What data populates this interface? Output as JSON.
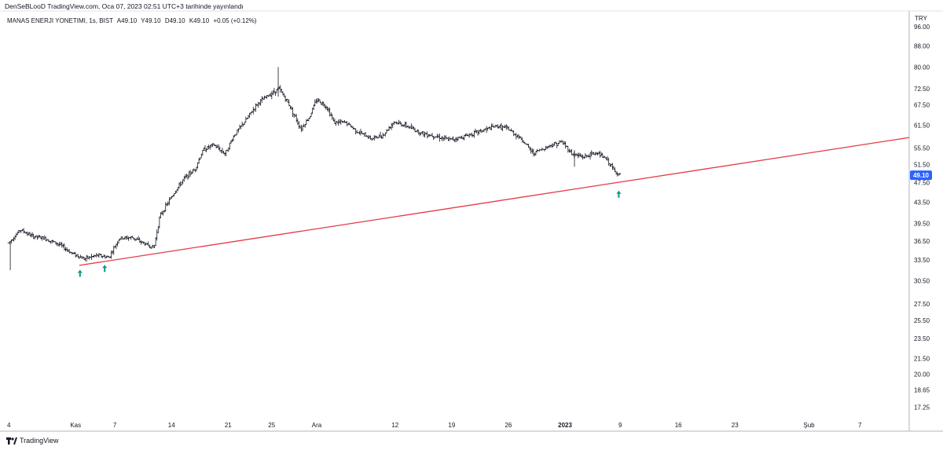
{
  "header": {
    "published_line": "DenSeBLooD TradingView.com, Oca 07, 2023 02:51 UTC+3 tarihinde yayınlandı"
  },
  "legend": {
    "symbol": "MANAS ENERJI YONETIMI, 1s, BIST",
    "open": "A49.10",
    "high": "Y49.10",
    "low": "D49.10",
    "close": "K49.10",
    "change": "+0.05 (+0.12%)"
  },
  "footer": {
    "brand": "TradingView"
  },
  "colors": {
    "bars": "#131722",
    "trendline": "#e53945",
    "arrows": "#089981",
    "price_tag": "#2962ff",
    "grid": "#e6e9ef"
  },
  "chart_data": {
    "type": "ohlc-bar",
    "currency": "TRY",
    "scale": "log",
    "ylim": [
      16.5,
      103
    ],
    "xlim": [
      -0.5,
      62
    ],
    "y_ticks": [
      "96.00",
      "88.00",
      "80.00",
      "72.50",
      "67.50",
      "61.50",
      "55.50",
      "51.50",
      "47.50",
      "43.50",
      "39.50",
      "36.50",
      "33.50",
      "30.50",
      "27.50",
      "25.50",
      "23.50",
      "21.50",
      "20.00",
      "18.65",
      "17.25"
    ],
    "last_price": "49.10",
    "x_ticks": [
      {
        "label": "4",
        "pos": 0
      },
      {
        "label": "Kas",
        "pos": 4.6
      },
      {
        "label": "7",
        "pos": 7.3
      },
      {
        "label": "14",
        "pos": 11.2
      },
      {
        "label": "21",
        "pos": 15.1
      },
      {
        "label": "25",
        "pos": 18.1
      },
      {
        "label": "Ara",
        "pos": 21.2
      },
      {
        "label": "12",
        "pos": 26.6
      },
      {
        "label": "19",
        "pos": 30.5
      },
      {
        "label": "26",
        "pos": 34.4
      },
      {
        "label": "2023",
        "pos": 38.3,
        "bold": true
      },
      {
        "label": "9",
        "pos": 42.1
      },
      {
        "label": "16",
        "pos": 46.1
      },
      {
        "label": "23",
        "pos": 50
      },
      {
        "label": "Şub",
        "pos": 55.1
      },
      {
        "label": "7",
        "pos": 58.6
      }
    ],
    "price_path": [
      [
        0,
        36.2
      ],
      [
        0.8,
        38.4
      ],
      [
        1.6,
        37.3
      ],
      [
        2.5,
        36.9
      ],
      [
        3.5,
        35.9
      ],
      [
        4.3,
        34.6
      ],
      [
        5.2,
        33.7
      ],
      [
        6.1,
        34.2
      ],
      [
        6.9,
        33.9
      ],
      [
        7.6,
        36.9
      ],
      [
        8.5,
        37.1
      ],
      [
        9.3,
        36.1
      ],
      [
        10.0,
        35.4
      ],
      [
        10.4,
        40.8
      ],
      [
        11.2,
        44.5
      ],
      [
        12.1,
        48.5
      ],
      [
        12.8,
        50.4
      ],
      [
        13.4,
        55.1
      ],
      [
        14.1,
        56.3
      ],
      [
        14.9,
        54.1
      ],
      [
        15.5,
        58.7
      ],
      [
        16.3,
        62.8
      ],
      [
        17.1,
        67.7
      ],
      [
        17.9,
        70.5
      ],
      [
        18.6,
        72.6
      ],
      [
        19.3,
        67.5
      ],
      [
        20.1,
        60.5
      ],
      [
        20.7,
        63.8
      ],
      [
        21.2,
        69.2
      ],
      [
        21.9,
        66.8
      ],
      [
        22.4,
        62.3
      ],
      [
        23.2,
        62.3
      ],
      [
        24.0,
        59.8
      ],
      [
        25.0,
        57.9
      ],
      [
        25.8,
        58.9
      ],
      [
        26.5,
        62.5
      ],
      [
        27.4,
        61.3
      ],
      [
        28.4,
        59.4
      ],
      [
        29.3,
        58.7
      ],
      [
        30.3,
        57.6
      ],
      [
        31.1,
        58.2
      ],
      [
        32.3,
        59.7
      ],
      [
        33.6,
        61.3
      ],
      [
        34.3,
        60.7
      ],
      [
        35.3,
        57.8
      ],
      [
        36.1,
        54.2
      ],
      [
        37.3,
        56.2
      ],
      [
        38.1,
        57.1
      ],
      [
        38.8,
        54.0
      ],
      [
        39.6,
        53.3
      ],
      [
        40.5,
        54.4
      ],
      [
        41.2,
        52.6
      ],
      [
        41.7,
        50.0
      ],
      [
        42.1,
        49.1
      ]
    ],
    "trendline": {
      "x1": 4.85,
      "y1": 32.7,
      "x2": 62,
      "y2": 58.2
    },
    "arrows": [
      {
        "x": 4.9,
        "y": 31.5
      },
      {
        "x": 6.6,
        "y": 32.2
      },
      {
        "x": 42.0,
        "y": 45.0
      }
    ]
  }
}
